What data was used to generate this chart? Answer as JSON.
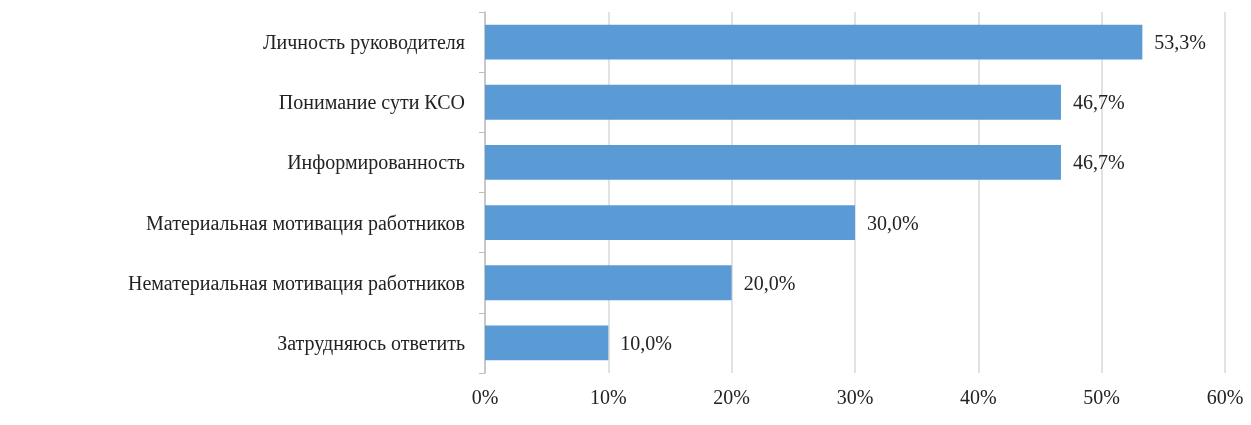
{
  "chart_data": {
    "type": "bar",
    "orientation": "horizontal",
    "categories": [
      "Личность руководителя",
      "Понимание сути КСО",
      "Информированность",
      "Материальная мотивация работников",
      "Нематериальная мотивация работников",
      "Затрудняюсь ответить"
    ],
    "values": [
      53.3,
      46.7,
      46.7,
      30.0,
      20.0,
      10.0
    ],
    "value_labels": [
      "53,3%",
      "46,7%",
      "46,7%",
      "30,0%",
      "20,0%",
      "10,0%"
    ],
    "color": "#5b9bd5",
    "xlim": [
      0,
      60
    ],
    "xticks": [
      {
        "value": 0,
        "label": "0%"
      },
      {
        "value": 10,
        "label": "10%"
      },
      {
        "value": 20,
        "label": "20%"
      },
      {
        "value": 30,
        "label": "30%"
      },
      {
        "value": 40,
        "label": "40%"
      },
      {
        "value": 50,
        "label": "50%"
      },
      {
        "value": 60,
        "label": "60%"
      }
    ],
    "grid": "x"
  }
}
